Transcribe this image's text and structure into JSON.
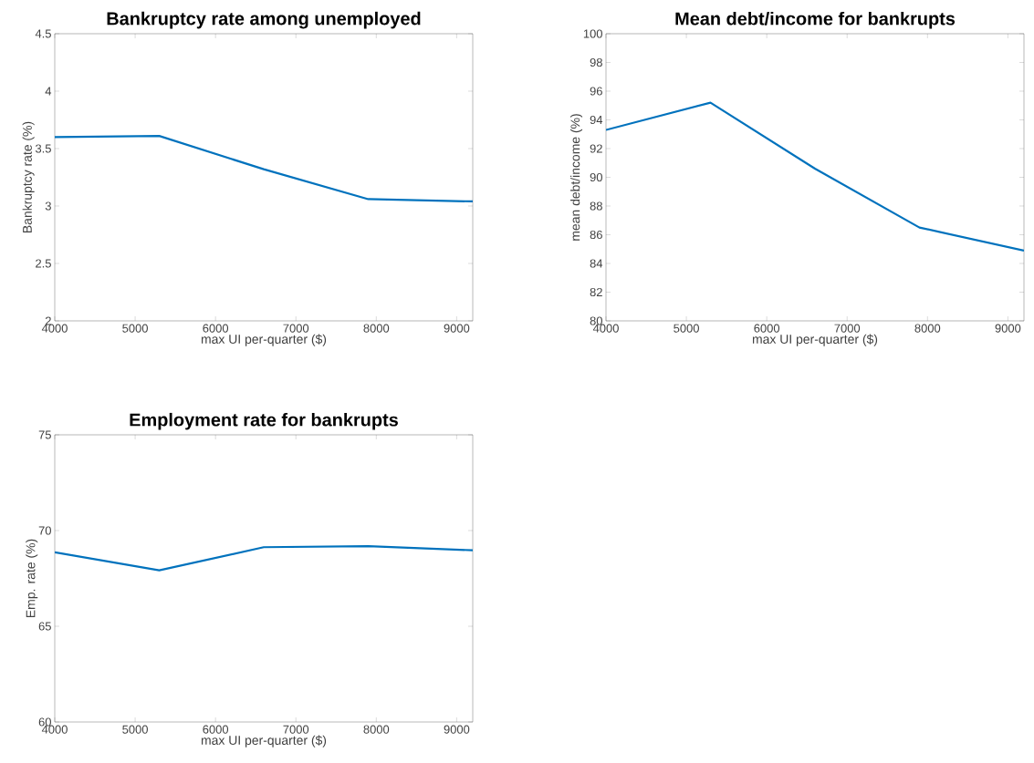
{
  "chart_data": [
    {
      "type": "line",
      "title": "Bankruptcy rate among unemployed",
      "xlabel": "max UI per-quarter ($)",
      "ylabel": "Bankruptcy rate (%)",
      "x": [
        4000,
        5300,
        6600,
        7900,
        9200
      ],
      "values": [
        3.6,
        3.61,
        3.32,
        3.06,
        3.04
      ],
      "color": "#0072bd",
      "xlim": [
        4000,
        9200
      ],
      "ylim": [
        2,
        4.5
      ],
      "xticks": [
        4000,
        5000,
        6000,
        7000,
        8000,
        9000
      ],
      "yticks": [
        {
          "value": 2,
          "label": "2"
        },
        2.5,
        {
          "value": 3,
          "label": "3"
        },
        3.5,
        {
          "value": 4,
          "label": "4"
        },
        4.5
      ]
    },
    {
      "type": "line",
      "title": "Mean debt/income for bankrupts",
      "xlabel": "max UI per-quarter ($)",
      "ylabel": "mean debt/income (%)",
      "x": [
        4000,
        5300,
        6600,
        7900,
        9200
      ],
      "values": [
        93.3,
        95.2,
        90.6,
        86.5,
        84.9
      ],
      "color": "#0072bd",
      "xlim": [
        4000,
        9200
      ],
      "ylim": [
        80,
        100
      ],
      "xticks": [
        4000,
        5000,
        6000,
        7000,
        8000,
        9000
      ],
      "yticks": [
        80,
        82,
        84,
        86,
        88,
        90,
        92,
        94,
        96,
        98,
        100
      ]
    },
    {
      "type": "line",
      "title": "Employment rate for bankrupts",
      "xlabel": "max UI per-quarter ($)",
      "ylabel": "Emp. rate (%)",
      "x": [
        4000,
        5300,
        6600,
        7900,
        9200
      ],
      "values": [
        68.86,
        67.92,
        69.13,
        69.18,
        68.97
      ],
      "color": "#0072bd",
      "xlim": [
        4000,
        9200
      ],
      "ylim": [
        60,
        75
      ],
      "xticks": [
        4000,
        5000,
        6000,
        7000,
        8000,
        9000
      ],
      "yticks": [
        60,
        65,
        70,
        75
      ]
    }
  ]
}
